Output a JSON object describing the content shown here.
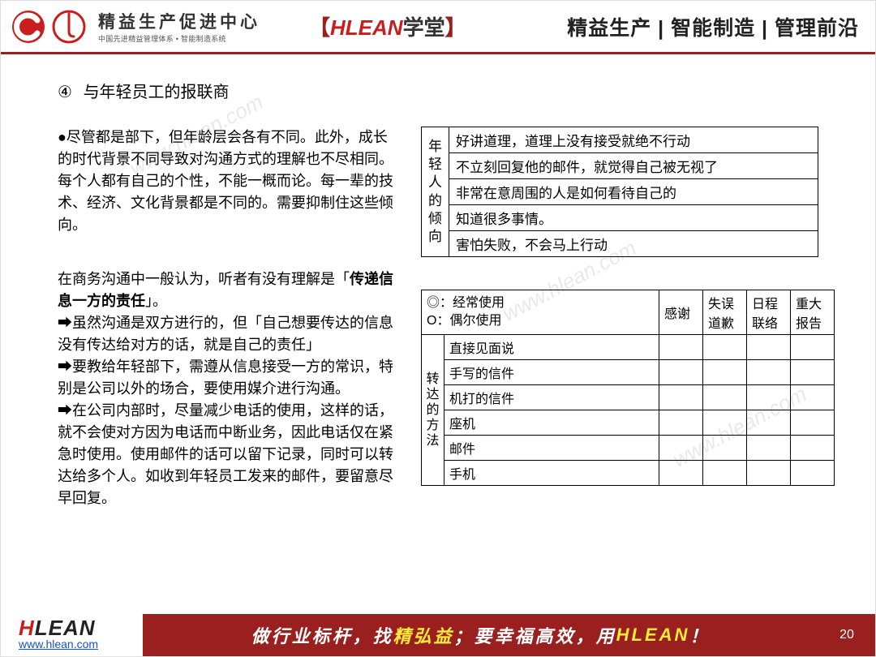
{
  "header": {
    "logo_main": "精益生产促进中心",
    "logo_sub": "中国先进精益管理体系 • 智能制造系统",
    "school_bracket_l": "【",
    "school_hlean": "HLEAN",
    "school_xue": "学堂",
    "school_bracket_r": "】",
    "nav": "精益生产 | 智能制造 | 管理前沿"
  },
  "title": {
    "num": "④",
    "text": "与年轻员工的报联商"
  },
  "para1": "●尽管都是部下，但年龄层会各有不同。此外，成长的时代背景不同导致对沟通方式的理解也不尽相同。每个人都有自己的个性，不能一概而论。每一辈的技术、经济、文化背景都是不同的。需要抑制住这些倾向。",
  "para2_lead_a": "在商务沟通中一般认为，听者有没有理解是「",
  "para2_bold": "传递信息一方的责任",
  "para2_lead_b": "」。",
  "para2_lines": [
    "➡虽然沟通是双方进行的，但「自己想要传达的信息没有传达给对方的话，就是自己的责任」",
    "➡要教给年轻部下，需遵从信息接受一方的常识，特别是公司以外的场合，要使用媒介进行沟通。",
    "➡在公司内部时，尽量减少电话的使用，这样的话，就不会使对方因为电话而中断业务，因此电话仅在紧急时使用。使用邮件的话可以留下记录，同时可以转达给多个人。如收到年轻员工发来的邮件，要留意尽早回复。"
  ],
  "table1": {
    "vheader": "年轻人的倾向",
    "rows": [
      "好讲道理，道理上没有接受就绝不行动",
      "不立刻回复他的邮件，就觉得自己被无视了",
      "非常在意周围的人是如何看待自己的",
      "知道很多事情。",
      "害怕失败，不会马上行动"
    ]
  },
  "table2": {
    "legend": "◎：经常使用\nO：偶尔使用",
    "vheader": "转达的方法",
    "cols": [
      "感谢",
      "失误道歉",
      "日程联络",
      "重大报告"
    ],
    "rows": [
      "直接见面说",
      "手写的信件",
      "机打的信件",
      "座机",
      "邮件",
      "手机"
    ]
  },
  "footer": {
    "url": "www.hlean.com",
    "slogan_a": "做行业标杆，找",
    "slogan_y1": "精弘益",
    "slogan_b": "；要幸福高效，用",
    "slogan_y2": "HLEAN",
    "slogan_c": "！",
    "page": "20"
  },
  "watermark": "www.hlean.com",
  "colors": {
    "brand_red": "#9a1f1f",
    "accent_red": "#c81e1e",
    "text": "#222222"
  }
}
